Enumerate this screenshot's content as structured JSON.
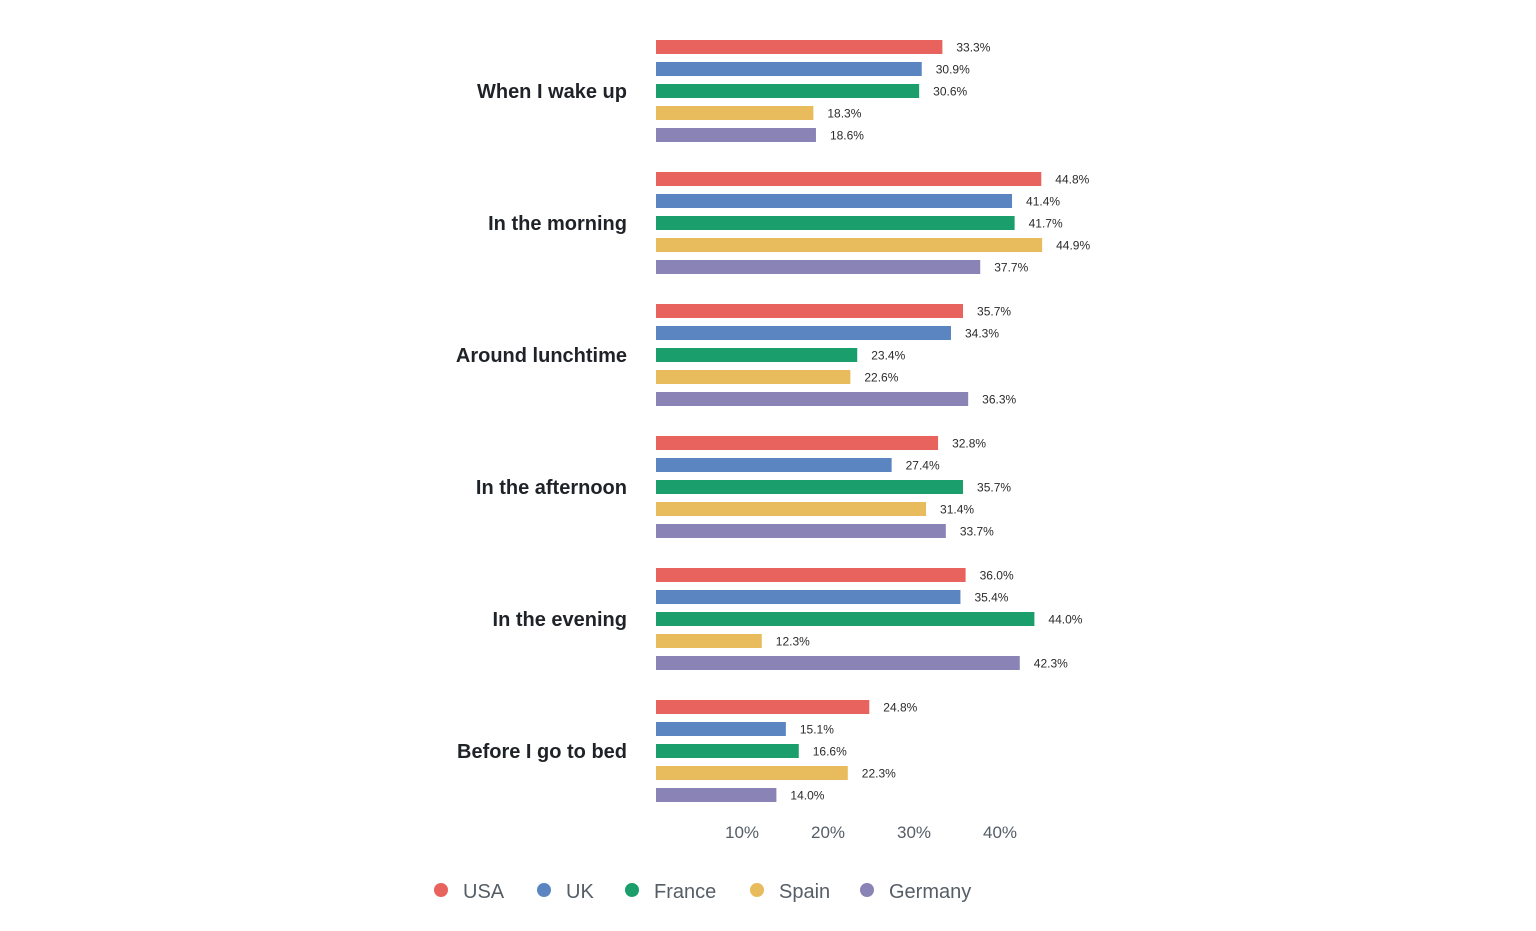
{
  "chart_data": {
    "type": "bar",
    "orientation": "horizontal",
    "title": "",
    "xlabel": "",
    "ylabel": "",
    "xlim": [
      0,
      45
    ],
    "grid": false,
    "legend_position": "bottom",
    "value_suffix": "%",
    "categories": [
      "When I wake up",
      "In the morning",
      "Around lunchtime",
      "In the afternoon",
      "In the evening",
      "Before I go to bed"
    ],
    "x_ticks": [
      10,
      20,
      30,
      40
    ],
    "x_tick_labels": [
      "10%",
      "20%",
      "30%",
      "40%"
    ],
    "series": [
      {
        "name": "USA",
        "color": "#e8625e",
        "values": [
          33.3,
          44.8,
          35.7,
          32.8,
          36.0,
          24.8
        ],
        "labels": [
          "33.3%",
          "44.8%",
          "35.7%",
          "32.8%",
          "36.0%",
          "24.8%"
        ]
      },
      {
        "name": "UK",
        "color": "#5b85c1",
        "values": [
          30.9,
          41.4,
          34.3,
          27.4,
          35.4,
          15.1
        ],
        "labels": [
          "30.9%",
          "41.4%",
          "34.3%",
          "27.4%",
          "35.4%",
          "15.1%"
        ]
      },
      {
        "name": "France",
        "color": "#1a9e6b",
        "values": [
          30.6,
          41.7,
          23.4,
          35.7,
          44.0,
          16.6
        ],
        "labels": [
          "30.6%",
          "41.7%",
          "23.4%",
          "35.7%",
          "44.0%",
          "16.6%"
        ]
      },
      {
        "name": "Spain",
        "color": "#e8bc5c",
        "values": [
          18.3,
          44.9,
          22.6,
          31.4,
          12.3,
          22.3
        ],
        "labels": [
          "18.3%",
          "44.9%",
          "22.6%",
          "31.4%",
          "12.3%",
          "22.3%"
        ]
      },
      {
        "name": "Germany",
        "color": "#8a84b6",
        "values": [
          18.6,
          37.7,
          36.3,
          33.7,
          42.3,
          14.0
        ],
        "labels": [
          "18.6%",
          "37.7%",
          "36.3%",
          "33.7%",
          "42.3%",
          "14.0%"
        ]
      }
    ]
  }
}
